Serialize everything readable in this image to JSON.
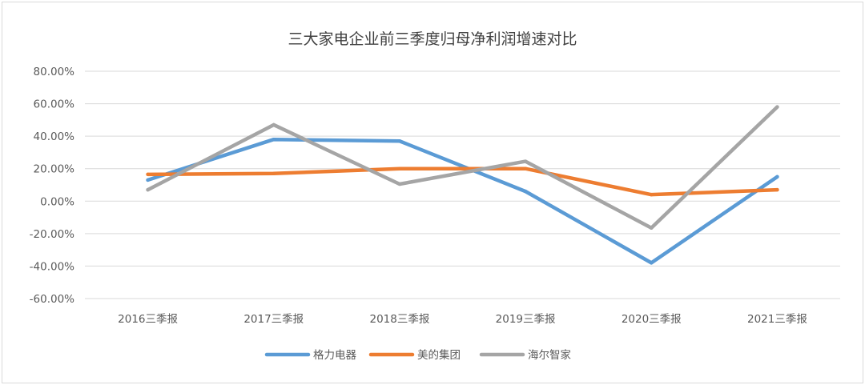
{
  "chart_data": {
    "type": "line",
    "title": "三大家电企业前三季度归母净利润增速对比",
    "categories": [
      "2016三季报",
      "2017三季报",
      "2018三季报",
      "2019三季报",
      "2020三季报",
      "2021三季报"
    ],
    "y_ticks": [
      "80.00%",
      "60.00%",
      "40.00%",
      "20.00%",
      "0.00%",
      "-20.00%",
      "-40.00%",
      "-60.00%"
    ],
    "ylim": [
      -60,
      80
    ],
    "y_unit": "%",
    "grid": true,
    "legend_position": "bottom",
    "series": [
      {
        "name": "格力电器",
        "color": "#5b9bd5",
        "values": [
          13,
          38,
          37,
          6,
          -38,
          15
        ]
      },
      {
        "name": "美的集团",
        "color": "#ed7d31",
        "values": [
          16.5,
          17,
          20,
          20,
          4,
          7
        ]
      },
      {
        "name": "海尔智家",
        "color": "#a5a5a5",
        "values": [
          7,
          47,
          10.5,
          24.5,
          -16.5,
          58
        ]
      }
    ]
  }
}
